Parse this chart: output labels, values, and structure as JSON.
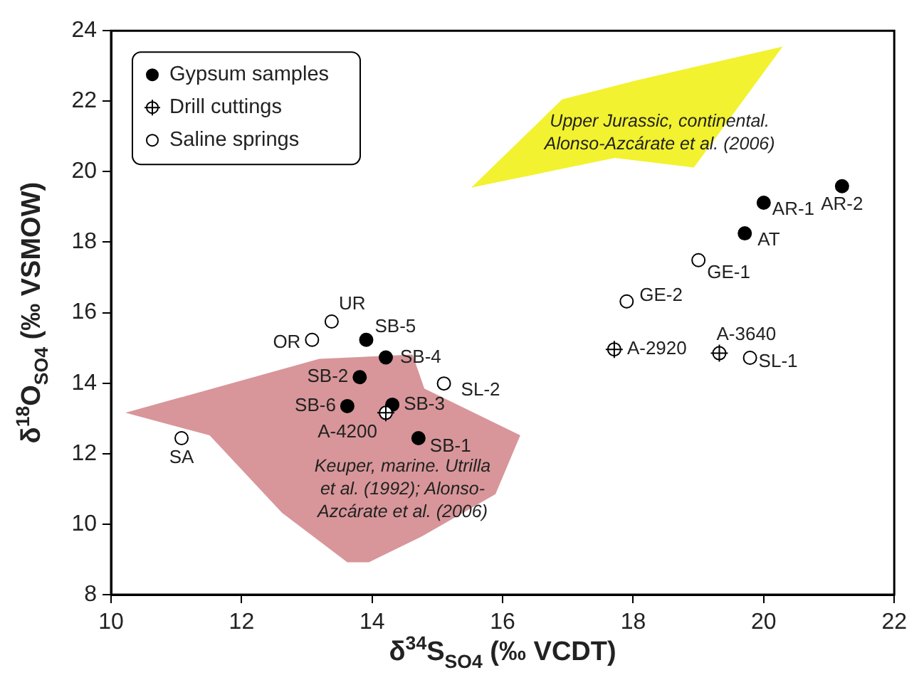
{
  "chart_data": {
    "type": "scatter",
    "xlabel": "δ$^{34}$S$_{SO4}$ (‰ VCDT)",
    "ylabel": "δ$^{18}$O$_{SO4}$ (‰ VSMOW)",
    "xlim": [
      10,
      22
    ],
    "xticks": [
      10,
      12,
      14,
      16,
      18,
      20,
      22
    ],
    "ylim": [
      8,
      24
    ],
    "yticks": [
      8,
      10,
      12,
      14,
      16,
      18,
      20,
      22,
      24
    ],
    "grid": false,
    "legend": "top left",
    "series": [
      {
        "type": "area",
        "color": "#f2f230",
        "x": [
          15.52,
          16.91,
          18.05,
          20.29,
          18.93,
          17.72
        ],
        "values": [
          19.55,
          22.05,
          22.59,
          23.55,
          20.12,
          20.39
        ]
      },
      {
        "type": "area",
        "color": "#d8969a",
        "x": [
          10.22,
          13.19,
          14.62,
          14.8,
          16.27,
          15.89,
          14.76,
          13.95,
          13.62,
          12.62,
          11.51
        ],
        "values": [
          13.16,
          14.69,
          14.81,
          13.85,
          12.52,
          10.85,
          9.65,
          8.92,
          8.92,
          10.32,
          12.52
        ]
      },
      {
        "name": "Gypsum samples",
        "marker": "circle",
        "color": "#000000",
        "x": [
          13.91,
          14.21,
          13.81,
          13.62,
          14.31,
          14.71,
          21.2,
          20.0,
          19.71
        ],
        "values": [
          15.23,
          14.73,
          14.17,
          13.35,
          13.39,
          12.44,
          19.59,
          19.12,
          18.25
        ]
      },
      {
        "name": "Drill cuttings",
        "color": "#ffffff",
        "x": [
          14.21,
          17.71,
          19.32
        ],
        "values": [
          13.16,
          14.96,
          14.85
        ]
      },
      {
        "name": "Saline springs",
        "marker": "circle",
        "color": "#ffffff",
        "x": [
          13.38,
          13.08,
          15.1,
          11.08,
          19.0,
          17.9,
          19.79
        ],
        "values": [
          15.75,
          15.23,
          13.99,
          12.44,
          17.49,
          16.32,
          14.72
        ]
      }
    ],
    "annotations": [
      "Upper Jurassic, continental.\nAlonso-Azcárate et al. (2006)",
      "Keuper, marine. Utrilla\net al. (1992); Alonso-\nAzcárate et al. (2006)",
      {
        "text": "UR",
        "x": 13.38,
        "y": 15.75
      },
      {
        "text": "OR",
        "x": 13.08,
        "y": 15.23
      },
      {
        "text": "SB-5",
        "x": 13.91,
        "y": 15.23
      },
      {
        "text": "SB-4",
        "x": 14.21,
        "y": 14.73
      },
      {
        "text": "SB-2",
        "x": 13.81,
        "y": 14.17
      },
      {
        "text": "SL-2",
        "x": 15.1,
        "y": 13.99
      },
      {
        "text": "SB-6",
        "x": 13.62,
        "y": 13.35
      },
      {
        "text": "SB-3",
        "x": 14.31,
        "y": 13.39
      },
      {
        "text": "A-4200",
        "x": 14.21,
        "y": 13.16
      },
      {
        "text": "SB-1",
        "x": 14.71,
        "y": 12.44
      },
      {
        "text": "SA",
        "x": 11.08,
        "y": 12.44
      },
      {
        "text": "AR-2",
        "x": 21.2,
        "y": 19.59
      },
      {
        "text": "AR-1",
        "x": 20.0,
        "y": 19.12
      },
      {
        "text": "AT",
        "x": 19.71,
        "y": 18.25
      },
      {
        "text": "GE-1",
        "x": 19.0,
        "y": 17.49
      },
      {
        "text": "GE-2",
        "x": 17.9,
        "y": 16.32
      },
      {
        "text": "A-2920",
        "x": 17.71,
        "y": 14.96
      },
      {
        "text": "A-3640",
        "x": 19.32,
        "y": 14.85
      },
      {
        "text": "SL-1",
        "x": 19.79,
        "y": 14.72
      }
    ]
  }
}
